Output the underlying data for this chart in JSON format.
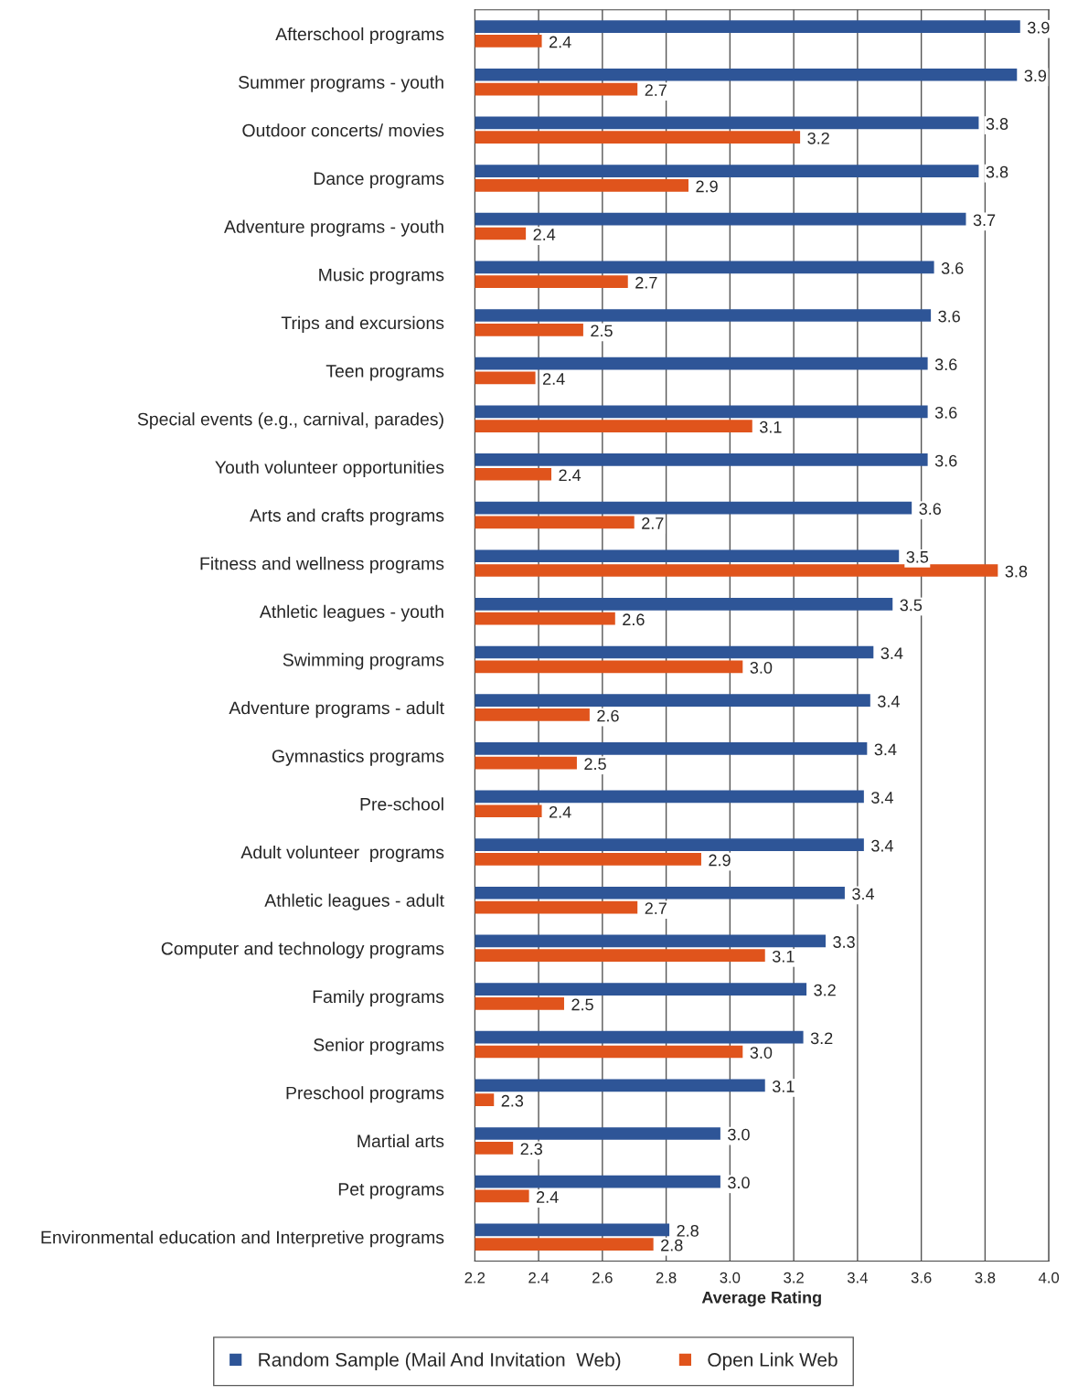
{
  "chart_data": {
    "type": "bar",
    "orientation": "horizontal",
    "xlabel": "Average Rating",
    "categories": [
      "Afterschool programs",
      "Summer programs - youth",
      "Outdoor concerts/ movies",
      "Dance programs",
      "Adventure programs - youth",
      "Music programs",
      "Trips and excursions",
      "Teen programs",
      "Special events (e.g., carnival, parades)",
      "Youth volunteer opportunities",
      "Arts and crafts programs",
      "Fitness and wellness programs",
      "Athletic leagues - youth",
      "Swimming programs",
      "Adventure programs - adult",
      "Gymnastics programs",
      "Pre-school",
      "Adult volunteer  programs",
      "Athletic leagues - adult",
      "Computer and technology programs",
      "Family programs",
      "Senior programs",
      "Preschool programs",
      "Martial arts",
      "Pet programs",
      "Environmental education and Interpretive programs"
    ],
    "series": [
      {
        "name": "Random Sample (Mail And Invitation  Web)",
        "color": "#2e5597",
        "values": [
          3.91,
          3.9,
          3.78,
          3.78,
          3.74,
          3.64,
          3.63,
          3.62,
          3.62,
          3.62,
          3.57,
          3.53,
          3.51,
          3.45,
          3.44,
          3.43,
          3.42,
          3.42,
          3.36,
          3.3,
          3.24,
          3.23,
          3.11,
          2.97,
          2.97,
          2.81
        ],
        "value_labels": [
          "3.9",
          "3.9",
          "3.8",
          "3.8",
          "3.7",
          "3.6",
          "3.6",
          "3.6",
          "3.6",
          "3.6",
          "3.6",
          "3.5",
          "3.5",
          "3.4",
          "3.4",
          "3.4",
          "3.4",
          "3.4",
          "3.4",
          "3.3",
          "3.2",
          "3.2",
          "3.1",
          "3.0",
          "3.0",
          "2.8"
        ]
      },
      {
        "name": "Open Link Web",
        "color": "#e0541c",
        "values": [
          2.41,
          2.71,
          3.22,
          2.87,
          2.36,
          2.68,
          2.54,
          2.39,
          3.07,
          2.44,
          2.7,
          3.84,
          2.64,
          3.04,
          2.56,
          2.52,
          2.41,
          2.91,
          2.71,
          3.11,
          2.48,
          3.04,
          2.26,
          2.32,
          2.37,
          2.76
        ],
        "value_labels": [
          "2.4",
          "2.7",
          "3.2",
          "2.9",
          "2.4",
          "2.7",
          "2.5",
          "2.4",
          "3.1",
          "2.4",
          "2.7",
          "3.8",
          "2.6",
          "3.0",
          "2.6",
          "2.5",
          "2.4",
          "2.9",
          "2.7",
          "3.1",
          "2.5",
          "3.0",
          "2.3",
          "2.3",
          "2.4",
          "2.8"
        ]
      }
    ],
    "xlim": [
      2.2,
      4.0
    ],
    "xticks": [
      {
        "value": 2.2,
        "label": "2.2"
      },
      {
        "value": 2.4,
        "label": "2.4"
      },
      {
        "value": 2.6,
        "label": "2.6"
      },
      {
        "value": 2.8,
        "label": "2.8"
      },
      {
        "value": 3.0,
        "label": "3.0"
      },
      {
        "value": 3.2,
        "label": "3.2"
      },
      {
        "value": 3.4,
        "label": "3.4"
      },
      {
        "value": 3.6,
        "label": "3.6"
      },
      {
        "value": 3.8,
        "label": "3.8"
      },
      {
        "value": 4.0,
        "label": "4.0"
      }
    ],
    "grid": "x",
    "legend": "bottom"
  }
}
